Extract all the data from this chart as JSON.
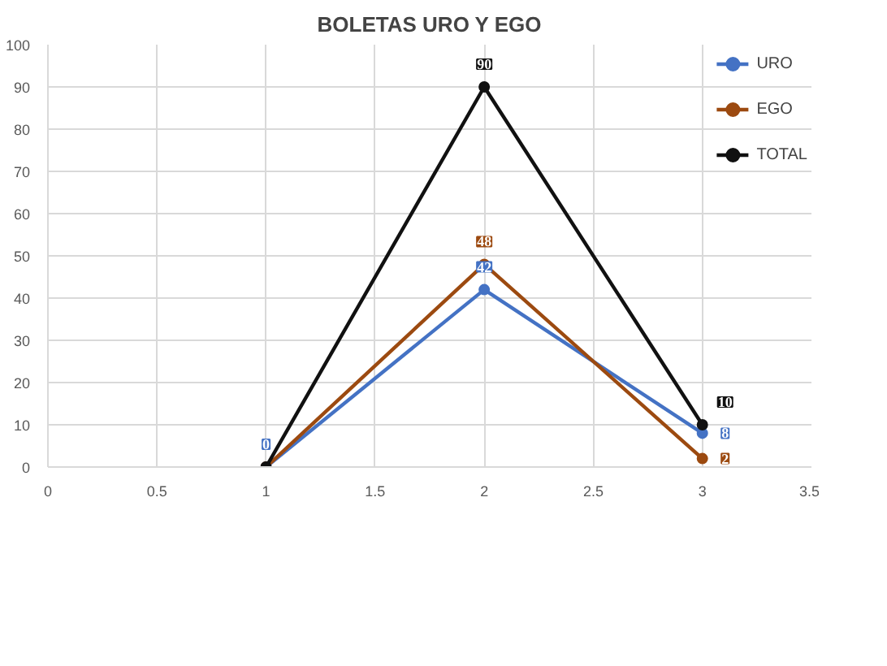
{
  "chart_data": {
    "type": "line",
    "title": "BOLETAS URO Y EGO",
    "x": [
      1,
      2,
      3
    ],
    "series": [
      {
        "name": "URO",
        "color": "#4472c4",
        "values": [
          0,
          42,
          8
        ],
        "value_labels": [
          "0",
          "42",
          "8"
        ]
      },
      {
        "name": "EGO",
        "color": "#9c4a10",
        "values": [
          0,
          48,
          2
        ],
        "value_labels": [
          null,
          "48",
          "2"
        ]
      },
      {
        "name": "TOTAL",
        "color": "#111111",
        "values": [
          0,
          90,
          10
        ],
        "value_labels": [
          null,
          "90",
          "10"
        ]
      }
    ],
    "xlim": [
      0,
      3.5
    ],
    "xticks": [
      0,
      0.5,
      1,
      1.5,
      2,
      2.5,
      3,
      3.5
    ],
    "ylim": [
      0,
      100
    ],
    "yticks": [
      0,
      10,
      20,
      30,
      40,
      50,
      60,
      70,
      80,
      90,
      100
    ],
    "grid": true,
    "legend": "top right",
    "marker": "circle",
    "line_style": "solid"
  }
}
